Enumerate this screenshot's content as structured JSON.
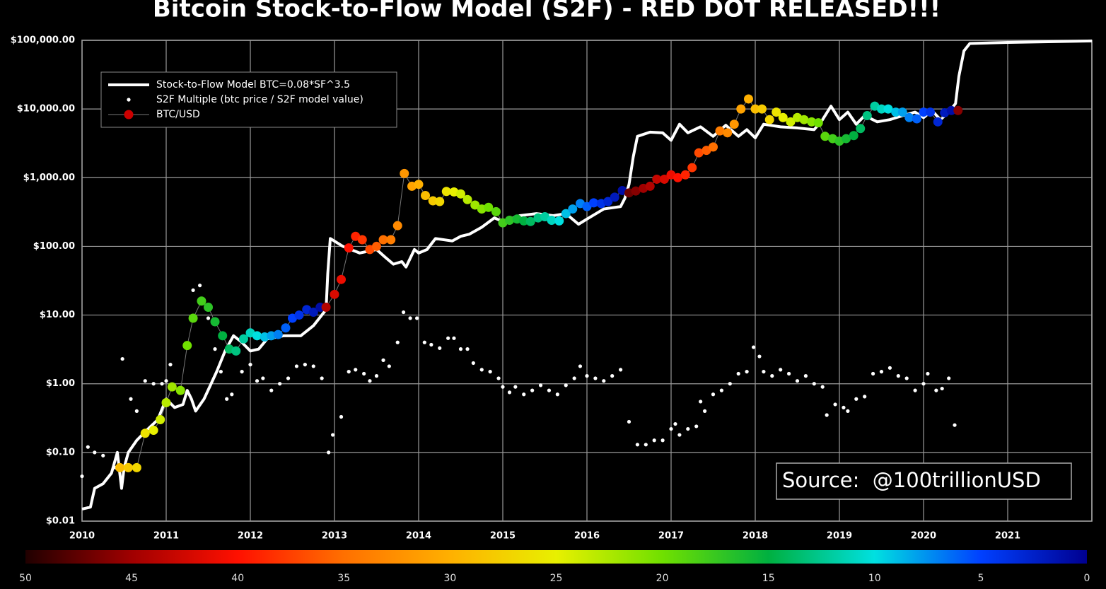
{
  "chart_data": {
    "type": "line",
    "title": "Bitcoin Stock-to-Flow Model (S2F) - RED DOT RELEASED!!!",
    "log_y": true,
    "grid": true,
    "legend": "upper left",
    "annotation": "Source:  @100trillionUSD",
    "xlim": [
      2010,
      2022
    ],
    "xticks": [
      2010,
      2011,
      2012,
      2013,
      2014,
      2015,
      2016,
      2017,
      2018,
      2019,
      2020,
      2021
    ],
    "ylim": [
      0.01,
      100000
    ],
    "yticks": [
      {
        "value": 0.01,
        "label": "$0.01"
      },
      {
        "value": 0.1,
        "label": "$0.10"
      },
      {
        "value": 1,
        "label": "$1.00"
      },
      {
        "value": 10,
        "label": "$10.00"
      },
      {
        "value": 100,
        "label": "$100.00"
      },
      {
        "value": 1000,
        "label": "$1,000.00"
      },
      {
        "value": 10000,
        "label": "$10,000.00"
      },
      {
        "value": 100000,
        "label": "$100,000.00"
      }
    ],
    "colorbar": {
      "ticks": [
        50,
        45,
        40,
        35,
        30,
        25,
        20,
        15,
        10,
        5,
        0
      ],
      "colors": [
        "#200000",
        "#a00000",
        "#ff1000",
        "#ff7000",
        "#ffb000",
        "#e8f000",
        "#70e000",
        "#00b040",
        "#00e0e0",
        "#0040ff",
        "#000090"
      ]
    },
    "series": [
      {
        "name": "Stock-to-Flow Model BTC=0.08*SF^3.5",
        "kind": "line",
        "color": "#ffffff",
        "x": [
          2010.0,
          2010.1,
          2010.15,
          2010.25,
          2010.35,
          2010.42,
          2010.47,
          2010.5,
          2010.55,
          2010.65,
          2010.75,
          2010.9,
          2011.0,
          2011.1,
          2011.2,
          2011.25,
          2011.3,
          2011.35,
          2011.45,
          2011.6,
          2011.7,
          2011.8,
          2011.9,
          2012.0,
          2012.1,
          2012.2,
          2012.4,
          2012.6,
          2012.75,
          2012.9,
          2012.92,
          2012.95,
          2013.1,
          2013.3,
          2013.5,
          2013.6,
          2013.7,
          2013.8,
          2013.85,
          2013.95,
          2014.0,
          2014.1,
          2014.2,
          2014.4,
          2014.5,
          2014.6,
          2014.75,
          2014.9,
          2015.0,
          2015.2,
          2015.4,
          2015.6,
          2015.75,
          2015.9,
          2016.0,
          2016.2,
          2016.4,
          2016.45,
          2016.5,
          2016.55,
          2016.6,
          2016.75,
          2016.9,
          2017.0,
          2017.1,
          2017.2,
          2017.35,
          2017.5,
          2017.65,
          2017.8,
          2017.9,
          2018.0,
          2018.1,
          2018.3,
          2018.5,
          2018.7,
          2018.8,
          2018.9,
          2019.0,
          2019.1,
          2019.2,
          2019.3,
          2019.45,
          2019.6,
          2019.75,
          2019.9,
          2020.0,
          2020.1,
          2020.2,
          2020.3,
          2020.38,
          2020.42,
          2020.48,
          2020.55,
          2021.0,
          2022.0
        ],
        "values": [
          0.015,
          0.016,
          0.03,
          0.035,
          0.05,
          0.1,
          0.03,
          0.06,
          0.1,
          0.15,
          0.2,
          0.3,
          0.6,
          0.45,
          0.5,
          0.8,
          0.6,
          0.4,
          0.6,
          1.5,
          3,
          5,
          4,
          3,
          3.2,
          4.5,
          5,
          5,
          7,
          12,
          40,
          130,
          100,
          80,
          90,
          70,
          55,
          60,
          50,
          90,
          80,
          90,
          130,
          120,
          140,
          150,
          190,
          260,
          230,
          280,
          300,
          280,
          300,
          210,
          250,
          350,
          380,
          500,
          800,
          2000,
          4000,
          4600,
          4500,
          3500,
          6000,
          4500,
          5500,
          4000,
          5800,
          4000,
          5000,
          3800,
          6000,
          5500,
          5300,
          5000,
          7000,
          11000,
          7000,
          9000,
          6000,
          8000,
          6500,
          7000,
          8000,
          9000,
          7500,
          9500,
          7000,
          9000,
          12000,
          30000,
          70000,
          90000,
          93000,
          98000
        ]
      },
      {
        "name": "S2F Multiple (btc price / S2F model value)",
        "kind": "scatter",
        "color": "#ffffff",
        "x": [
          2010.0,
          2010.07,
          2010.15,
          2010.25,
          2010.4,
          2010.48,
          2010.58,
          2010.65,
          2010.75,
          2010.85,
          2010.95,
          2011.0,
          2011.05,
          2011.25,
          2011.32,
          2011.4,
          2011.5,
          2011.58,
          2011.65,
          2011.72,
          2011.78,
          2011.9,
          2012.0,
          2012.08,
          2012.15,
          2012.25,
          2012.35,
          2012.45,
          2012.55,
          2012.65,
          2012.75,
          2012.85,
          2012.93,
          2012.98,
          2013.08,
          2013.17,
          2013.25,
          2013.35,
          2013.42,
          2013.5,
          2013.58,
          2013.65,
          2013.75,
          2013.82,
          2013.9,
          2013.98,
          2014.07,
          2014.15,
          2014.25,
          2014.35,
          2014.42,
          2014.5,
          2014.58,
          2014.65,
          2014.75,
          2014.85,
          2014.95,
          2015.0,
          2015.08,
          2015.15,
          2015.25,
          2015.35,
          2015.45,
          2015.55,
          2015.65,
          2015.75,
          2015.85,
          2015.92,
          2016.0,
          2016.1,
          2016.2,
          2016.3,
          2016.4,
          2016.5,
          2016.6,
          2016.7,
          2016.8,
          2016.9,
          2017.0,
          2017.05,
          2017.1,
          2017.2,
          2017.3,
          2017.35,
          2017.4,
          2017.5,
          2017.6,
          2017.7,
          2017.8,
          2017.9,
          2017.98,
          2018.05,
          2018.1,
          2018.2,
          2018.3,
          2018.4,
          2018.5,
          2018.6,
          2018.7,
          2018.8,
          2018.85,
          2018.95,
          2019.05,
          2019.1,
          2019.2,
          2019.3,
          2019.4,
          2019.5,
          2019.6,
          2019.7,
          2019.8,
          2019.9,
          2020.0,
          2020.05,
          2020.15,
          2020.22,
          2020.3,
          2020.37
        ],
        "values": [
          0.045,
          0.12,
          0.1,
          0.09,
          0.06,
          2.3,
          0.6,
          0.4,
          1.1,
          1.0,
          1.0,
          1.1,
          1.9,
          3.8,
          23,
          27,
          9,
          3.2,
          1.5,
          0.6,
          0.7,
          1.5,
          1.9,
          1.1,
          1.2,
          0.8,
          1.0,
          1.2,
          1.8,
          1.9,
          1.8,
          1.2,
          0.1,
          0.18,
          0.33,
          1.5,
          1.6,
          1.4,
          1.1,
          1.3,
          2.2,
          1.8,
          4,
          11,
          9,
          9,
          4,
          3.7,
          3.3,
          4.6,
          4.6,
          3.2,
          3.2,
          2.0,
          1.6,
          1.5,
          1.2,
          0.9,
          0.75,
          0.9,
          0.7,
          0.8,
          0.95,
          0.8,
          0.7,
          0.95,
          1.2,
          1.8,
          1.3,
          1.2,
          1.1,
          1.3,
          1.6,
          0.28,
          0.13,
          0.13,
          0.15,
          0.15,
          0.22,
          0.26,
          0.18,
          0.22,
          0.24,
          0.55,
          0.4,
          0.7,
          0.8,
          1.0,
          1.4,
          1.5,
          3.4,
          2.5,
          1.5,
          1.3,
          1.6,
          1.4,
          1.1,
          1.3,
          1.0,
          0.9,
          0.35,
          0.5,
          0.45,
          0.4,
          0.6,
          0.65,
          1.4,
          1.5,
          1.7,
          1.3,
          1.2,
          0.8,
          1.0,
          1.4,
          0.8,
          0.85,
          1.2,
          0.25
        ]
      },
      {
        "name": "BTC/USD",
        "kind": "color-scatter",
        "color": "#cc0000",
        "x": [
          2010.45,
          2010.55,
          2010.65,
          2010.75,
          2010.85,
          2010.93,
          2011.0,
          2011.07,
          2011.17,
          2011.25,
          2011.32,
          2011.42,
          2011.5,
          2011.58,
          2011.67,
          2011.75,
          2011.83,
          2011.92,
          2012.0,
          2012.08,
          2012.17,
          2012.25,
          2012.33,
          2012.42,
          2012.5,
          2012.58,
          2012.67,
          2012.75,
          2012.83,
          2012.9,
          2013.0,
          2013.08,
          2013.17,
          2013.25,
          2013.33,
          2013.42,
          2013.5,
          2013.58,
          2013.67,
          2013.75,
          2013.83,
          2013.92,
          2014.0,
          2014.08,
          2014.17,
          2014.25,
          2014.33,
          2014.42,
          2014.5,
          2014.58,
          2014.67,
          2014.75,
          2014.83,
          2014.92,
          2015.0,
          2015.08,
          2015.17,
          2015.25,
          2015.33,
          2015.42,
          2015.5,
          2015.58,
          2015.67,
          2015.75,
          2015.83,
          2015.92,
          2016.0,
          2016.08,
          2016.17,
          2016.25,
          2016.33,
          2016.42,
          2016.5,
          2016.58,
          2016.67,
          2016.75,
          2016.83,
          2016.92,
          2017.0,
          2017.08,
          2017.17,
          2017.25,
          2017.33,
          2017.42,
          2017.5,
          2017.58,
          2017.67,
          2017.75,
          2017.83,
          2017.92,
          2018.0,
          2018.08,
          2018.17,
          2018.25,
          2018.33,
          2018.42,
          2018.5,
          2018.58,
          2018.67,
          2018.75,
          2018.83,
          2018.92,
          2019.0,
          2019.08,
          2019.17,
          2019.25,
          2019.33,
          2019.42,
          2019.5,
          2019.58,
          2019.67,
          2019.75,
          2019.83,
          2019.92,
          2020.0,
          2020.08,
          2020.17,
          2020.25,
          2020.33,
          2020.41
        ],
        "values": [
          0.06,
          0.06,
          0.06,
          0.19,
          0.21,
          0.3,
          0.53,
          0.9,
          0.8,
          3.6,
          9,
          16,
          13,
          8,
          5,
          3.2,
          3,
          4.5,
          5.5,
          5,
          4.8,
          5,
          5.2,
          6.5,
          9,
          10,
          12,
          11,
          13,
          13,
          20,
          33,
          95,
          140,
          125,
          90,
          100,
          125,
          125,
          200,
          1150,
          750,
          800,
          550,
          460,
          450,
          630,
          620,
          580,
          480,
          400,
          350,
          370,
          320,
          220,
          240,
          250,
          235,
          230,
          260,
          270,
          240,
          235,
          300,
          350,
          420,
          380,
          430,
          420,
          450,
          520,
          650,
          600,
          640,
          700,
          750,
          950,
          950,
          1100,
          1000,
          1100,
          1400,
          2300,
          2500,
          2800,
          4800,
          4500,
          6000,
          10000,
          14000,
          10000,
          10000,
          7000,
          9000,
          7500,
          6500,
          7500,
          7000,
          6500,
          6300,
          4000,
          3700,
          3400,
          3700,
          4100,
          5200,
          8000,
          11000,
          10000,
          10000,
          9000,
          9000,
          7500,
          7200,
          9000,
          9000,
          6500,
          8800,
          9500,
          9500
        ],
        "color_values": [
          29,
          28,
          27,
          26,
          25,
          24,
          23,
          22,
          21,
          20,
          19,
          18,
          17,
          16,
          15,
          14,
          13,
          12,
          11,
          10,
          9,
          8,
          7,
          6,
          5,
          4,
          3,
          2,
          1,
          44,
          42,
          41,
          40,
          39,
          38,
          37,
          36,
          35,
          34,
          33,
          32,
          31,
          30,
          29,
          28,
          27,
          26,
          25,
          24,
          23,
          22,
          21,
          20,
          19,
          18,
          17,
          16,
          15,
          14,
          13,
          12,
          11,
          10,
          9,
          8,
          7,
          6,
          5,
          4,
          3,
          2,
          1,
          47,
          46,
          45,
          44,
          43,
          42,
          41,
          40,
          39,
          38,
          37,
          36,
          35,
          34,
          33,
          32,
          31,
          30,
          29,
          28,
          27,
          26,
          25,
          24,
          23,
          22,
          21,
          20,
          19,
          18,
          17,
          16,
          15,
          14,
          13,
          12,
          11,
          10,
          9,
          8,
          7,
          6,
          5,
          4,
          3,
          2,
          1,
          46
        ]
      }
    ]
  }
}
